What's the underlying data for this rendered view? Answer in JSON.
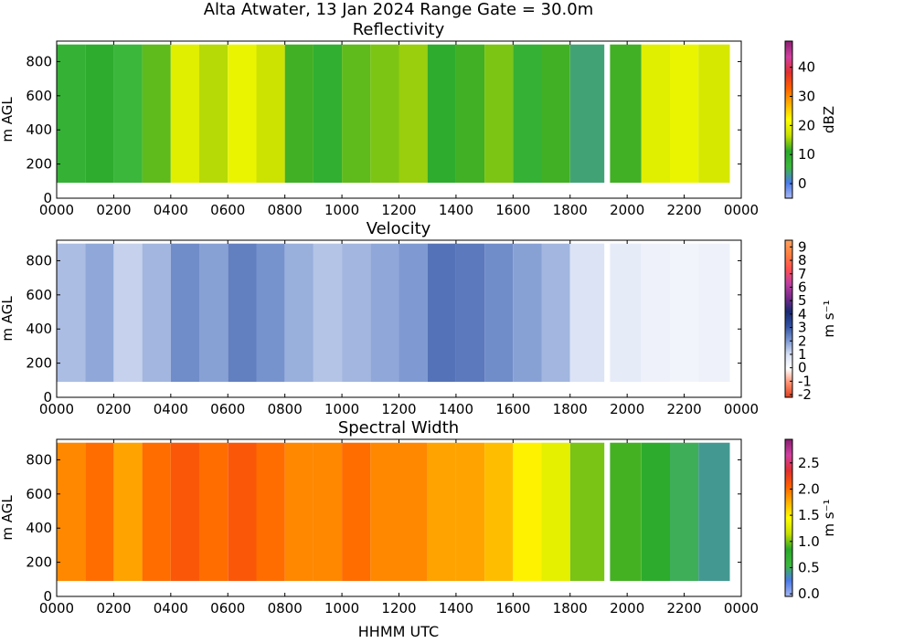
{
  "figure_title": "Alta Atwater, 13 Jan 2024 Range Gate = 30.0m",
  "xlabel": "HHMM UTC",
  "chart_data": [
    {
      "type": "heatmap",
      "title": "Reflectivity",
      "ylabel": "m AGL",
      "colorbar_label": "dBZ",
      "x_ticks": [
        "0000",
        "0200",
        "0400",
        "0600",
        "0800",
        "1000",
        "1200",
        "1400",
        "1600",
        "1800",
        "2000",
        "2200",
        "0000"
      ],
      "y_ticks": [
        "0",
        "200",
        "400",
        "600",
        "800"
      ],
      "y_range": [
        0,
        920
      ],
      "data_height_range": [
        90,
        900
      ],
      "colorbar_range": [
        -5,
        49
      ],
      "colorbar_ticks": [
        "0",
        "10",
        "20",
        "30",
        "40"
      ],
      "colorbar_tick_values": [
        0,
        10,
        20,
        30,
        40
      ],
      "colorbar_colors": [
        "#a8b8f0",
        "#4a7ae8",
        "#3cb83c",
        "#2aa82a",
        "#c8e000",
        "#ffff00",
        "#ffb000",
        "#ff6000",
        "#e03030",
        "#d040a0",
        "#8a2070"
      ],
      "segments": [
        {
          "start_h": 0.0,
          "end_h": 1.0,
          "value": 8
        },
        {
          "start_h": 1.0,
          "end_h": 2.0,
          "value": 10
        },
        {
          "start_h": 2.0,
          "end_h": 3.0,
          "value": 6
        },
        {
          "start_h": 3.0,
          "end_h": 4.0,
          "value": 13
        },
        {
          "start_h": 4.0,
          "end_h": 5.0,
          "value": 19
        },
        {
          "start_h": 5.0,
          "end_h": 6.0,
          "value": 16
        },
        {
          "start_h": 6.0,
          "end_h": 7.0,
          "value": 20
        },
        {
          "start_h": 7.0,
          "end_h": 8.0,
          "value": 17
        },
        {
          "start_h": 8.0,
          "end_h": 9.0,
          "value": 12
        },
        {
          "start_h": 9.0,
          "end_h": 10.0,
          "value": 9
        },
        {
          "start_h": 10.0,
          "end_h": 11.0,
          "value": 13
        },
        {
          "start_h": 11.0,
          "end_h": 12.0,
          "value": 14
        },
        {
          "start_h": 12.0,
          "end_h": 13.0,
          "value": 15
        },
        {
          "start_h": 13.0,
          "end_h": 14.0,
          "value": 10
        },
        {
          "start_h": 14.0,
          "end_h": 15.0,
          "value": 12
        },
        {
          "start_h": 15.0,
          "end_h": 16.0,
          "value": 14
        },
        {
          "start_h": 16.0,
          "end_h": 17.0,
          "value": 8
        },
        {
          "start_h": 17.0,
          "end_h": 18.0,
          "value": 12
        },
        {
          "start_h": 18.0,
          "end_h": 19.2,
          "value": 4
        },
        {
          "start_h": 19.4,
          "end_h": 20.5,
          "value": 12
        },
        {
          "start_h": 20.5,
          "end_h": 21.5,
          "value": 19
        },
        {
          "start_h": 21.5,
          "end_h": 22.5,
          "value": 20
        },
        {
          "start_h": 22.5,
          "end_h": 23.6,
          "value": 18
        }
      ]
    },
    {
      "type": "heatmap",
      "title": "Velocity",
      "ylabel": "m AGL",
      "colorbar_label": "m s⁻¹",
      "x_ticks": [
        "0000",
        "0200",
        "0400",
        "0600",
        "0800",
        "1000",
        "1200",
        "1400",
        "1600",
        "1800",
        "2000",
        "2200",
        "0000"
      ],
      "y_ticks": [
        "0",
        "200",
        "400",
        "600",
        "800"
      ],
      "y_range": [
        0,
        920
      ],
      "data_height_range": [
        90,
        900
      ],
      "colorbar_range": [
        -2.2,
        9.5
      ],
      "colorbar_ticks": [
        "-2",
        "-1",
        "0",
        "1",
        "2",
        "3",
        "4",
        "5",
        "6",
        "7",
        "8",
        "9"
      ],
      "colorbar_tick_values": [
        -2,
        -1,
        0,
        1,
        2,
        3,
        4,
        5,
        6,
        7,
        8,
        9
      ],
      "colorbar_colors": [
        "#e04020",
        "#ff9070",
        "#ffffff",
        "#d8e0f4",
        "#7a96d0",
        "#3050a0",
        "#1a2a70",
        "#7a2a8a",
        "#c040a0",
        "#ff5050",
        "#ff8040",
        "#ffa060"
      ],
      "segments": [
        {
          "start_h": 0.0,
          "end_h": 1.0,
          "value": 1.5
        },
        {
          "start_h": 1.0,
          "end_h": 2.0,
          "value": 1.8
        },
        {
          "start_h": 2.0,
          "end_h": 3.0,
          "value": 1.2
        },
        {
          "start_h": 3.0,
          "end_h": 4.0,
          "value": 1.6
        },
        {
          "start_h": 4.0,
          "end_h": 5.0,
          "value": 2.2
        },
        {
          "start_h": 5.0,
          "end_h": 6.0,
          "value": 1.9
        },
        {
          "start_h": 6.0,
          "end_h": 7.0,
          "value": 2.4
        },
        {
          "start_h": 7.0,
          "end_h": 8.0,
          "value": 2.1
        },
        {
          "start_h": 8.0,
          "end_h": 9.0,
          "value": 1.7
        },
        {
          "start_h": 9.0,
          "end_h": 10.0,
          "value": 1.4
        },
        {
          "start_h": 10.0,
          "end_h": 11.0,
          "value": 1.6
        },
        {
          "start_h": 11.0,
          "end_h": 12.0,
          "value": 1.8
        },
        {
          "start_h": 12.0,
          "end_h": 13.0,
          "value": 2.0
        },
        {
          "start_h": 13.0,
          "end_h": 14.0,
          "value": 2.6
        },
        {
          "start_h": 14.0,
          "end_h": 15.0,
          "value": 2.5
        },
        {
          "start_h": 15.0,
          "end_h": 16.0,
          "value": 2.2
        },
        {
          "start_h": 16.0,
          "end_h": 17.0,
          "value": 1.9
        },
        {
          "start_h": 17.0,
          "end_h": 18.0,
          "value": 1.6
        },
        {
          "start_h": 18.0,
          "end_h": 19.2,
          "value": 0.9
        },
        {
          "start_h": 19.4,
          "end_h": 20.5,
          "value": 0.6
        },
        {
          "start_h": 20.5,
          "end_h": 21.5,
          "value": 0.4
        },
        {
          "start_h": 21.5,
          "end_h": 22.5,
          "value": 0.3
        },
        {
          "start_h": 22.5,
          "end_h": 23.6,
          "value": 0.4
        }
      ]
    },
    {
      "type": "heatmap",
      "title": "Spectral Width",
      "ylabel": "m AGL",
      "colorbar_label": "m s⁻¹",
      "x_ticks": [
        "0000",
        "0200",
        "0400",
        "0600",
        "0800",
        "1000",
        "1200",
        "1400",
        "1600",
        "1800",
        "2000",
        "2200",
        "0000"
      ],
      "y_ticks": [
        "0",
        "200",
        "400",
        "600",
        "800"
      ],
      "y_range": [
        0,
        920
      ],
      "data_height_range": [
        90,
        900
      ],
      "colorbar_range": [
        -0.05,
        2.95
      ],
      "colorbar_ticks": [
        "0.0",
        "0.5",
        "1.0",
        "1.5",
        "2.0",
        "2.5"
      ],
      "colorbar_tick_values": [
        0.0,
        0.5,
        1.0,
        1.5,
        2.0,
        2.5
      ],
      "colorbar_colors": [
        "#a8b8f0",
        "#4a7ae8",
        "#3cb83c",
        "#2aa82a",
        "#c8e000",
        "#ffff00",
        "#ffb000",
        "#ff6000",
        "#e03030",
        "#d040a0",
        "#8a2070"
      ],
      "segments": [
        {
          "start_h": 0.0,
          "end_h": 1.0,
          "value": 1.9
        },
        {
          "start_h": 1.0,
          "end_h": 2.0,
          "value": 2.0
        },
        {
          "start_h": 2.0,
          "end_h": 3.0,
          "value": 1.8
        },
        {
          "start_h": 3.0,
          "end_h": 4.0,
          "value": 2.0
        },
        {
          "start_h": 4.0,
          "end_h": 5.0,
          "value": 2.1
        },
        {
          "start_h": 5.0,
          "end_h": 6.0,
          "value": 2.0
        },
        {
          "start_h": 6.0,
          "end_h": 7.0,
          "value": 2.1
        },
        {
          "start_h": 7.0,
          "end_h": 8.0,
          "value": 2.0
        },
        {
          "start_h": 8.0,
          "end_h": 9.0,
          "value": 1.9
        },
        {
          "start_h": 9.0,
          "end_h": 10.0,
          "value": 1.9
        },
        {
          "start_h": 10.0,
          "end_h": 11.0,
          "value": 2.0
        },
        {
          "start_h": 11.0,
          "end_h": 12.0,
          "value": 1.9
        },
        {
          "start_h": 12.0,
          "end_h": 13.0,
          "value": 1.9
        },
        {
          "start_h": 13.0,
          "end_h": 14.0,
          "value": 1.8
        },
        {
          "start_h": 14.0,
          "end_h": 15.0,
          "value": 1.8
        },
        {
          "start_h": 15.0,
          "end_h": 16.0,
          "value": 1.7
        },
        {
          "start_h": 16.0,
          "end_h": 17.0,
          "value": 1.5
        },
        {
          "start_h": 17.0,
          "end_h": 18.0,
          "value": 1.3
        },
        {
          "start_h": 18.0,
          "end_h": 19.2,
          "value": 1.0
        },
        {
          "start_h": 19.4,
          "end_h": 20.5,
          "value": 0.9
        },
        {
          "start_h": 20.5,
          "end_h": 21.5,
          "value": 0.8
        },
        {
          "start_h": 21.5,
          "end_h": 22.5,
          "value": 0.5
        },
        {
          "start_h": 22.5,
          "end_h": 23.6,
          "value": 0.4
        }
      ]
    }
  ]
}
